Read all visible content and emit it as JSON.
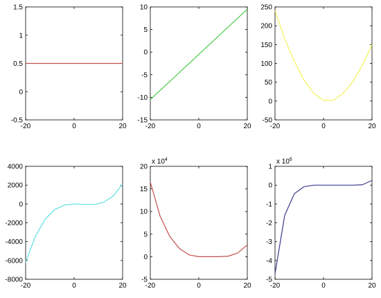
{
  "chart_data": [
    {
      "type": "line",
      "x": [
        -20,
        -16,
        -12,
        -8,
        -4,
        0,
        4,
        8,
        12,
        16,
        20
      ],
      "values": [
        0.5,
        0.5,
        0.5,
        0.5,
        0.5,
        0.5,
        0.5,
        0.5,
        0.5,
        0.5,
        0.5
      ],
      "color": "#c0504d",
      "xlim": [
        -20,
        20
      ],
      "xticks": [
        -20,
        0,
        20
      ],
      "ylim": [
        -0.5,
        1.5
      ],
      "yticks": [
        -0.5,
        0,
        0.5,
        1,
        1.5
      ]
    },
    {
      "type": "line",
      "x": [
        -20,
        -16,
        -12,
        -8,
        -4,
        0,
        4,
        8,
        12,
        16,
        20
      ],
      "values": [
        -10.5,
        -8.5,
        -6.5,
        -4.5,
        -2.5,
        -0.5,
        1.5,
        3.5,
        5.5,
        7.5,
        9.5
      ],
      "color": "#4ccc4c",
      "xlim": [
        -20,
        20
      ],
      "xticks": [
        -20,
        0,
        20
      ],
      "ylim": [
        -15,
        10
      ],
      "yticks": [
        -15,
        -10,
        -5,
        0,
        5,
        10
      ]
    },
    {
      "type": "line",
      "x": [
        -20,
        -16,
        -12,
        -8,
        -4,
        0,
        4,
        8,
        12,
        16,
        20
      ],
      "values": [
        240,
        165,
        105,
        55,
        20,
        2,
        2,
        20,
        50,
        95,
        150
      ],
      "color": "#f2f25a",
      "xlim": [
        -20,
        20
      ],
      "xticks": [
        -20,
        0,
        20
      ],
      "ylim": [
        -50,
        250
      ],
      "yticks": [
        -50,
        0,
        50,
        100,
        150,
        200,
        250
      ]
    },
    {
      "type": "line",
      "x": [
        -20,
        -16,
        -12,
        -8,
        -4,
        0,
        4,
        8,
        12,
        16,
        20
      ],
      "values": [
        -6200,
        -3438,
        -1635,
        -594,
        -115,
        0,
        -49,
        -62,
        159,
        814,
        2100
      ],
      "color": "#5ee0e0",
      "xlim": [
        -20,
        20
      ],
      "xticks": [
        -20,
        0,
        20
      ],
      "ylim": [
        -8000,
        4000
      ],
      "yticks": [
        -8000,
        -6000,
        -4000,
        -2000,
        0,
        2000,
        4000
      ]
    },
    {
      "type": "line",
      "x": [
        -20,
        -16,
        -12,
        -8,
        -4,
        0,
        4,
        8,
        12,
        16,
        20
      ],
      "values": [
        16.5,
        9,
        4.5,
        1.8,
        0.4,
        0,
        0,
        0,
        0.1,
        0.8,
        2.6
      ],
      "color": "#c0504d",
      "xlim": [
        -20,
        20
      ],
      "xticks": [
        -20,
        0,
        20
      ],
      "ylim": [
        -5,
        20
      ],
      "yticks": [
        -5,
        0,
        5,
        10,
        15,
        20
      ],
      "y_multiplier": "x 10",
      "y_multiplier_exp": "4"
    },
    {
      "type": "line",
      "x": [
        -20,
        -16,
        -12,
        -8,
        -4,
        0,
        4,
        8,
        12,
        16,
        20
      ],
      "values": [
        -4.7,
        -1.6,
        -0.45,
        -0.08,
        0,
        0,
        0,
        0,
        0,
        0.02,
        0.25
      ],
      "color": "#3a3a8c",
      "xlim": [
        -20,
        20
      ],
      "xticks": [
        -20,
        0,
        20
      ],
      "ylim": [
        -5,
        1
      ],
      "yticks": [
        -5,
        -4,
        -3,
        -2,
        -1,
        0,
        1
      ],
      "y_multiplier": "x 10",
      "y_multiplier_exp": "6"
    }
  ]
}
